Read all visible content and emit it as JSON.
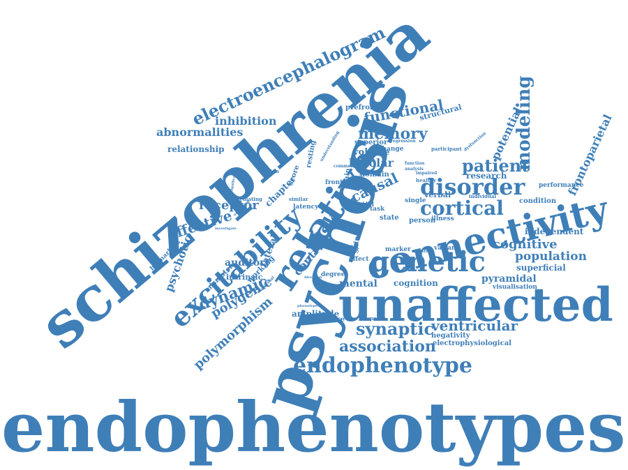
{
  "color": "#3f7fb8",
  "words": {
    "endophenotypes": "endophenotypes",
    "schizophrenia": "schizophrenia",
    "psychosis": "psychosis",
    "unaffected": "unaffected",
    "connectivity": "connectivity",
    "genetic": "genetic",
    "relative": "relative",
    "excitability": "excitability",
    "electroencephalogram": "electroencephalogram",
    "endophenotype": "endophenotype",
    "disorder": "disorder",
    "cortical": "cortical",
    "synaptic": "synaptic",
    "association": "association",
    "ventricular": "ventricular",
    "memory": "memory",
    "functional": "functional",
    "patient": "patient",
    "modeling": "modeling",
    "potential": "potential",
    "frontoparietal": "frontoparietal",
    "abnormalities": "abnormalities",
    "inhibition": "inhibition",
    "relationship": "relationship",
    "effective": "effective",
    "receptor": "receptor",
    "dynamic": "dynamic",
    "polygenic": "polygenic",
    "polymorphism": "polymorphism",
    "psychotic": "psychotic",
    "auditory": "auditory",
    "risk": "risk",
    "causal": "causal",
    "bipolar": "bipolar",
    "volume": "volume",
    "cognitive": "cognitive",
    "population": "population",
    "superficial": "superficial",
    "pyramidal": "pyramidal",
    "visualisation": "visualisation",
    "independent": "independent",
    "condition": "condition",
    "performance": "performance",
    "research": "research",
    "mental": "mental",
    "cognition": "cognition",
    "amplitude": "amplitude",
    "measure": "measure",
    "negativity": "negativity",
    "electrophysiological": "electrophysiological",
    "control": "control",
    "chapter": "chapter",
    "lateral": "lateral",
    "working": "working",
    "intrinsic": "intrinsic",
    "mismatch": "mismatch",
    "biomarkers": "biomarkers",
    "score": "score",
    "resting": "resting",
    "prefrontal": "prefrontal",
    "structural": "structural",
    "superior": "superior",
    "change": "change",
    "domain": "domain",
    "brain": "brain",
    "verbal": "verbal",
    "spatial": "spatial",
    "single": "single",
    "person": "person",
    "illness": "illness",
    "state": "state",
    "task": "task",
    "result": "result",
    "gain": "gain",
    "effect": "effect",
    "degree": "degree",
    "latency": "latency",
    "frontal": "frontal",
    "marker": "marker",
    "variant": "variant",
    "related": "related",
    "response": "response",
    "participant": "participant",
    "healthy": "healthy",
    "impaired": "impaired",
    "analysis": "analysis",
    "function": "function",
    "regression": "regression",
    "design": "design",
    "mediating": "mediating",
    "similar": "similar",
    "understanding": "understanding",
    "individual": "individual",
    "abnormal": "abnormal",
    "direction": "direction",
    "phenotype": "phenotype",
    "dysfunction": "dysfunction",
    "gabaergic": "gabaergic",
    "underlying": "underlying",
    "investigate": "investigate",
    "significance": "significance",
    "common": "common"
  }
}
